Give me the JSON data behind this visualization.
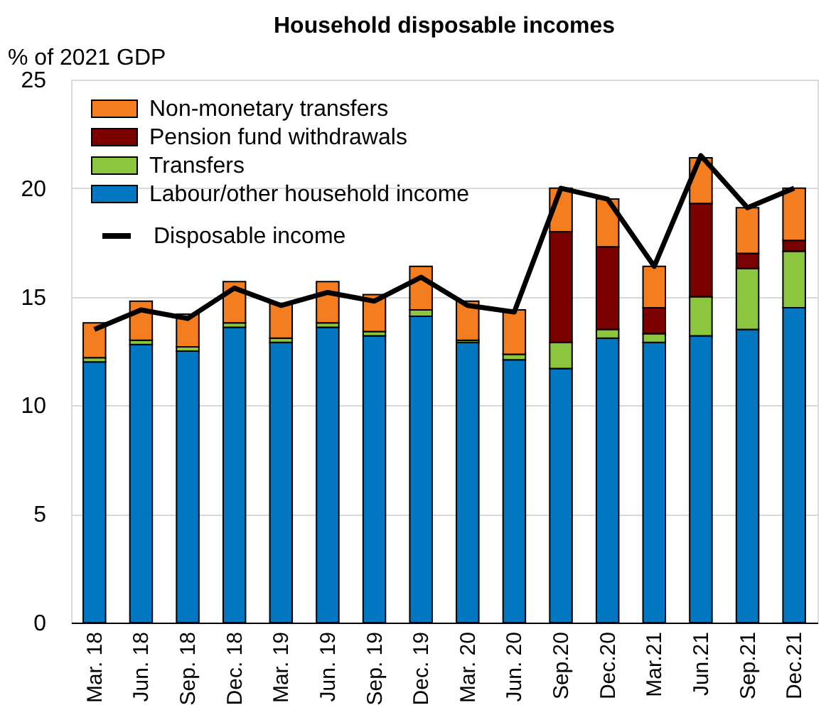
{
  "chart_data": {
    "type": "bar",
    "title": "Household disposable incomes",
    "ylabel": "% of 2021 GDP",
    "categories": [
      "Mar. 18",
      "Jun. 18",
      "Sep. 18",
      "Dec. 18",
      "Mar. 19",
      "Jun. 19",
      "Sep. 19",
      "Dec. 19",
      "Mar. 20",
      "Jun. 20",
      "Sep.20",
      "Dec.20",
      "Mar.21",
      "Jun.21",
      "Sep.21",
      "Dec.21"
    ],
    "stacked": true,
    "series": [
      {
        "name": "Labour/other household income",
        "color": "#0077c0",
        "values": [
          12.0,
          12.8,
          12.5,
          13.6,
          12.9,
          13.6,
          13.2,
          14.1,
          12.9,
          12.1,
          11.7,
          13.1,
          12.9,
          13.2,
          13.5,
          14.5
        ]
      },
      {
        "name": "Transfers",
        "color": "#8cc63f",
        "values": [
          0.2,
          0.2,
          0.2,
          0.2,
          0.2,
          0.2,
          0.2,
          0.3,
          0.1,
          0.25,
          1.2,
          0.4,
          0.4,
          1.8,
          2.8,
          2.6
        ]
      },
      {
        "name": "Pension fund withdrawals",
        "color": "#7b0000",
        "values": [
          null,
          null,
          null,
          null,
          null,
          null,
          null,
          null,
          null,
          null,
          5.1,
          3.8,
          1.2,
          4.3,
          0.7,
          0.5
        ]
      },
      {
        "name": "Non-monetary transfers",
        "color": "#f47d20",
        "values": [
          1.6,
          1.8,
          1.5,
          1.9,
          1.6,
          1.9,
          1.7,
          2.0,
          1.8,
          2.05,
          2.0,
          2.2,
          1.9,
          2.1,
          2.1,
          2.4
        ]
      },
      {
        "name": "Disposable income",
        "color": "#000000",
        "type": "line",
        "values": [
          13.5,
          14.4,
          14.0,
          15.4,
          14.6,
          15.2,
          14.8,
          15.9,
          14.6,
          14.3,
          20.0,
          19.5,
          16.4,
          21.5,
          19.1,
          20.0
        ]
      }
    ],
    "ylim": [
      0,
      25
    ],
    "yticks": [
      0,
      5,
      10,
      15,
      20,
      25
    ],
    "grid": "y",
    "legend": "top left",
    "marker": "none",
    "line_style": "solid"
  }
}
